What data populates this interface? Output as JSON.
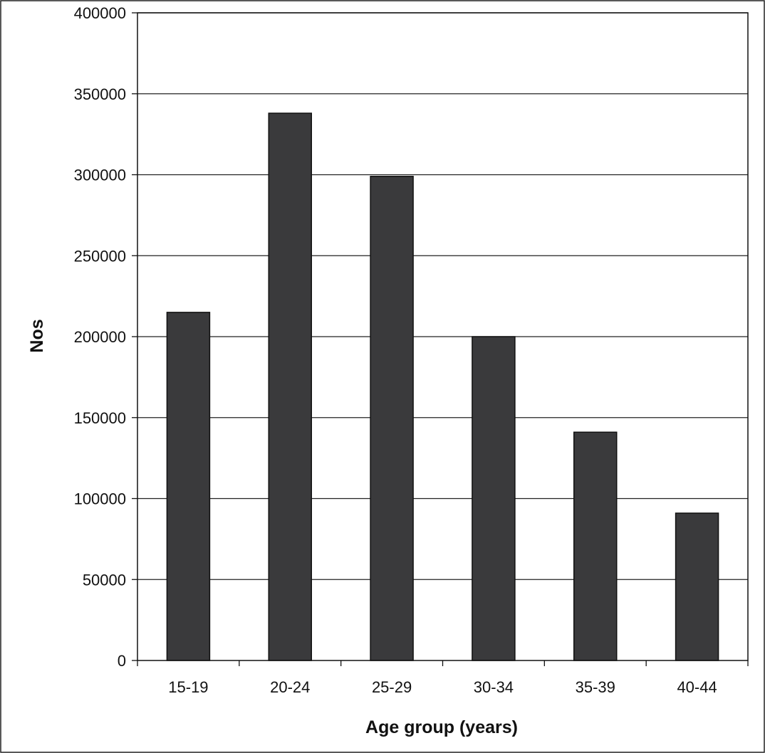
{
  "chart_data": {
    "type": "bar",
    "categories": [
      "15-19",
      "20-24",
      "25-29",
      "30-34",
      "35-39",
      "40-44"
    ],
    "values": [
      215000,
      338000,
      299000,
      200000,
      141000,
      91000
    ],
    "xlabel": "Age group (years)",
    "ylabel": "Nos",
    "ylim": [
      0,
      400000
    ],
    "yticks": [
      "0",
      "50000",
      "100000",
      "150000",
      "200000",
      "250000",
      "300000",
      "350000",
      "400000"
    ],
    "grid": true,
    "legend": "none",
    "colors": {
      "bar": "#3a3a3c",
      "bar_edge": "#111111",
      "grid": "#222222"
    }
  }
}
